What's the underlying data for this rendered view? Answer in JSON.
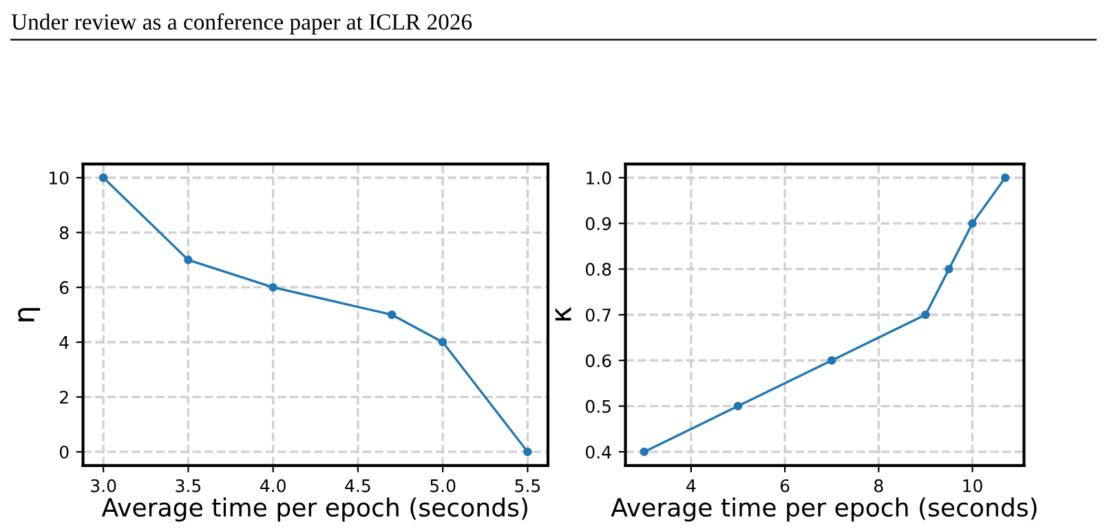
{
  "chart_data": [
    {
      "type": "line",
      "ylabel": "η",
      "xlabel": "Average time per epoch (seconds)",
      "annotations": [
        "Under review as a conference paper at ICLR 2026"
      ],
      "x": [
        3.0,
        3.5,
        4.0,
        4.7,
        5.0,
        5.5
      ],
      "series": [
        {
          "color": "#1f77b4",
          "values": [
            10,
            7,
            6,
            5,
            4,
            0
          ]
        }
      ],
      "xlim": [
        2.88,
        5.62
      ],
      "xticks": [
        {
          "value": 3,
          "label": "3.0"
        },
        3.5,
        {
          "value": 4,
          "label": "4.0"
        },
        4.5,
        {
          "value": 5,
          "label": "5.0"
        },
        5.5
      ],
      "ylim": [
        -0.5,
        10.5
      ],
      "yticks": [
        0,
        2,
        4,
        6,
        8,
        10
      ],
      "grid": true,
      "marker": "circle",
      "line_style": "solid"
    },
    {
      "type": "line",
      "ylabel": "κ",
      "xlabel": "Average time per epoch (seconds)",
      "x": [
        3,
        5,
        7,
        9,
        9.5,
        10,
        10.7
      ],
      "series": [
        {
          "color": "#1f77b4",
          "values": [
            0.4,
            0.5,
            0.6,
            0.7,
            0.8,
            0.9,
            1.0
          ]
        }
      ],
      "xlim": [
        2.6,
        11.1
      ],
      "xticks": [
        4,
        6,
        8,
        10
      ],
      "ylim": [
        0.37,
        1.03
      ],
      "yticks": [
        0.4,
        0.5,
        0.6,
        0.7,
        0.8,
        0.9,
        {
          "value": 1,
          "label": "1.0"
        }
      ],
      "grid": true,
      "marker": "circle",
      "line_style": "solid"
    }
  ]
}
